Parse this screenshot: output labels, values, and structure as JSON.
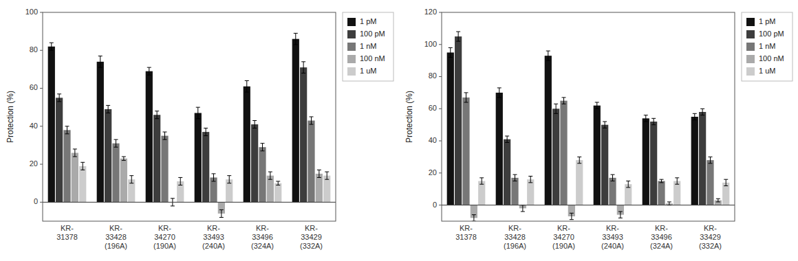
{
  "chart_data": [
    {
      "type": "bar",
      "categories": [
        "KR-\n31378",
        "KR-\n33428\n(196A)",
        "KR-\n34270\n(190A)",
        "KR-\n33493\n(240A)",
        "KR-\n33496\n(324A)",
        "KR-\n33429\n(332A)"
      ],
      "ylabel": "Protection (%)",
      "ylim": [
        -10,
        100
      ],
      "yticks": [
        0,
        20,
        40,
        60,
        80,
        100
      ],
      "grid": false,
      "legend": "right",
      "series": [
        {
          "name": "1 pM",
          "color": "#111111",
          "values": [
            82,
            74,
            69,
            47,
            61,
            86
          ],
          "errors": [
            2,
            3,
            2,
            3,
            3,
            3
          ]
        },
        {
          "name": "100 pM",
          "color": "#3d3d3d",
          "values": [
            55,
            49,
            46,
            37,
            41,
            71
          ],
          "errors": [
            2,
            2,
            2,
            2,
            2,
            3
          ]
        },
        {
          "name": "1 nM",
          "color": "#777777",
          "values": [
            38,
            31,
            35,
            13,
            29,
            43
          ],
          "errors": [
            2,
            2,
            2,
            2,
            2,
            2
          ]
        },
        {
          "name": "100 nM",
          "color": "#aaaaaa",
          "values": [
            26,
            23,
            0,
            -6,
            14,
            15
          ],
          "errors": [
            2,
            1,
            2,
            2,
            2,
            2
          ]
        },
        {
          "name": "1 uM",
          "color": "#cccccc",
          "values": [
            19,
            12,
            11,
            12,
            10,
            14
          ],
          "errors": [
            2,
            2,
            2,
            2,
            1,
            2
          ]
        }
      ]
    },
    {
      "type": "bar",
      "categories": [
        "KR-\n31378",
        "KR-\n33428\n(196A)",
        "KR-\n34270\n(190A)",
        "KR-\n33493\n(240A)",
        "KR-\n33496\n(324A)",
        "KR-\n33429\n(332A)"
      ],
      "ylabel": "Protection (%)",
      "ylim": [
        -10,
        120
      ],
      "yticks": [
        0,
        20,
        40,
        60,
        80,
        100,
        120
      ],
      "grid": false,
      "legend": "right",
      "series": [
        {
          "name": "1 pM",
          "color": "#111111",
          "values": [
            95,
            70,
            93,
            62,
            54,
            55
          ],
          "errors": [
            3,
            3,
            3,
            2,
            2,
            2
          ]
        },
        {
          "name": "100 pM",
          "color": "#3d3d3d",
          "values": [
            105,
            41,
            60,
            50,
            52,
            58
          ],
          "errors": [
            3,
            2,
            3,
            2,
            2,
            2
          ]
        },
        {
          "name": "1 nM",
          "color": "#777777",
          "values": [
            67,
            17,
            65,
            17,
            15,
            28
          ],
          "errors": [
            3,
            2,
            2,
            2,
            1,
            2
          ]
        },
        {
          "name": "100 nM",
          "color": "#aaaaaa",
          "values": [
            -8,
            -2,
            -7,
            -6,
            1,
            3
          ],
          "errors": [
            2,
            2,
            2,
            2,
            1,
            1
          ]
        },
        {
          "name": "1 uM",
          "color": "#cccccc",
          "values": [
            15,
            16,
            28,
            13,
            15,
            14
          ],
          "errors": [
            2,
            2,
            2,
            2,
            2,
            2
          ]
        }
      ]
    }
  ]
}
